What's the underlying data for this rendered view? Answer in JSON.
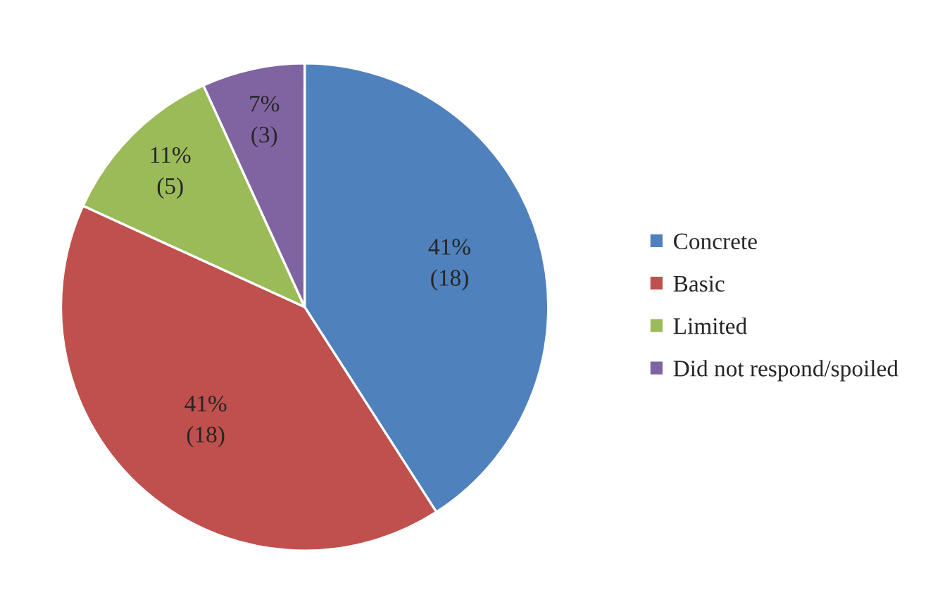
{
  "chart_data": {
    "type": "pie",
    "categories": [
      "Concrete",
      "Basic",
      "Limited",
      "Did not respond/spoiled"
    ],
    "values": [
      18,
      18,
      5,
      3
    ],
    "value_labels": [
      "41%\n(18)",
      "41%\n(18)",
      "11%\n(5)",
      "7%\n(3)"
    ],
    "colors": [
      "#4f81bd",
      "#c0504d",
      "#9bbb59",
      "#8064a2"
    ],
    "legend": "right"
  }
}
